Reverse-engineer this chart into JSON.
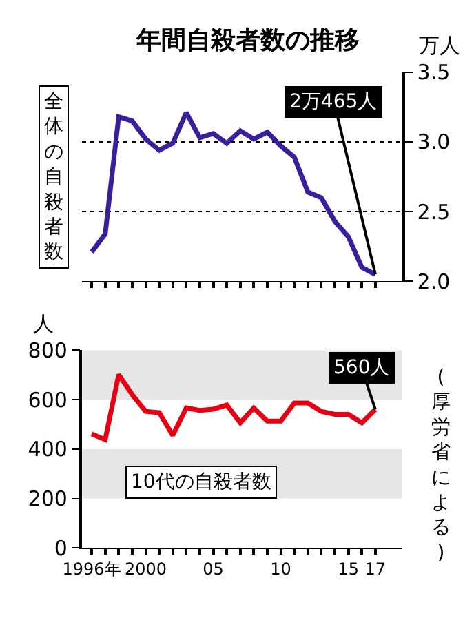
{
  "chart_data": [
    {
      "type": "line",
      "title": "年間自殺者数の推移",
      "ylabel": "万人",
      "x": [
        1996,
        1997,
        1998,
        1999,
        2000,
        2001,
        2002,
        2003,
        2004,
        2005,
        2006,
        2007,
        2008,
        2009,
        2010,
        2011,
        2012,
        2013,
        2014,
        2015,
        2016,
        2017
      ],
      "series": [
        {
          "color": "#3a1f9a",
          "values": [
            2.21,
            2.34,
            3.18,
            3.15,
            3.02,
            2.94,
            2.99,
            3.21,
            3.03,
            3.06,
            2.99,
            3.08,
            3.02,
            3.07,
            2.97,
            2.89,
            2.64,
            2.6,
            2.43,
            2.32,
            2.1,
            2.05
          ]
        }
      ],
      "xlim": [
        1995.3,
        2019
      ],
      "ylim": [
        2.0,
        3.5
      ],
      "yticks": [
        {
          "value": 2.0,
          "label": "2.0"
        },
        2.5,
        {
          "value": 3.0,
          "label": "3.0"
        },
        3.5
      ],
      "xticks": [
        1996,
        1997,
        1998,
        1999,
        2000,
        2001,
        2002,
        2003,
        2004,
        2005,
        2006,
        2007,
        2008,
        2009,
        2010,
        2011,
        2012,
        2013,
        2014,
        2015,
        2016,
        2017
      ],
      "tick_labels": "y",
      "grid": "y",
      "annotations": [
        {
          "text": "2万465人",
          "x": 2017,
          "y": 2.05
        },
        "全体の自殺者数"
      ]
    },
    {
      "type": "line",
      "ylabel": "人",
      "x": [
        1996,
        1997,
        1998,
        1999,
        2000,
        2001,
        2002,
        2003,
        2004,
        2005,
        2006,
        2007,
        2008,
        2009,
        2010,
        2011,
        2012,
        2013,
        2014,
        2015,
        2016,
        2017
      ],
      "series": [
        {
          "color": "#e60012",
          "values": [
            461,
            438,
            701,
            620,
            552,
            547,
            455,
            566,
            556,
            561,
            578,
            506,
            566,
            513,
            513,
            586,
            586,
            552,
            540,
            540,
            506,
            560
          ]
        }
      ],
      "xlim": [
        1995.3,
        2019
      ],
      "ylim": [
        0,
        800
      ],
      "yticks": [
        0,
        200,
        400,
        600,
        800
      ],
      "xticks": [
        {
          "value": 1996,
          "label": "1996年"
        },
        {
          "value": 1997,
          "label": null
        },
        {
          "value": 1998,
          "label": null
        },
        {
          "value": 1999,
          "label": null
        },
        2000,
        {
          "value": 2001,
          "label": null
        },
        {
          "value": 2002,
          "label": null
        },
        {
          "value": 2003,
          "label": null
        },
        {
          "value": 2004,
          "label": null
        },
        {
          "value": 2005,
          "label": "05"
        },
        {
          "value": 2006,
          "label": null
        },
        {
          "value": 2007,
          "label": null
        },
        {
          "value": 2008,
          "label": null
        },
        {
          "value": 2009,
          "label": null
        },
        {
          "value": 2010,
          "label": "10"
        },
        {
          "value": 2011,
          "label": null
        },
        {
          "value": 2012,
          "label": null
        },
        {
          "value": 2013,
          "label": null
        },
        {
          "value": 2014,
          "label": null
        },
        {
          "value": 2015,
          "label": "15"
        },
        {
          "value": 2016,
          "label": null
        },
        {
          "value": 2017,
          "label": "17"
        }
      ],
      "bands": [
        {
          "axis": "y",
          "from": 200,
          "to": 400,
          "color": "#e6e6e6"
        },
        {
          "axis": "y",
          "from": 600,
          "to": 800,
          "color": "#e6e6e6"
        }
      ],
      "annotations": [
        {
          "text": "560人",
          "x": 2017,
          "y": 560
        },
        "10代の自殺者数",
        "(厚労省による)"
      ]
    }
  ]
}
